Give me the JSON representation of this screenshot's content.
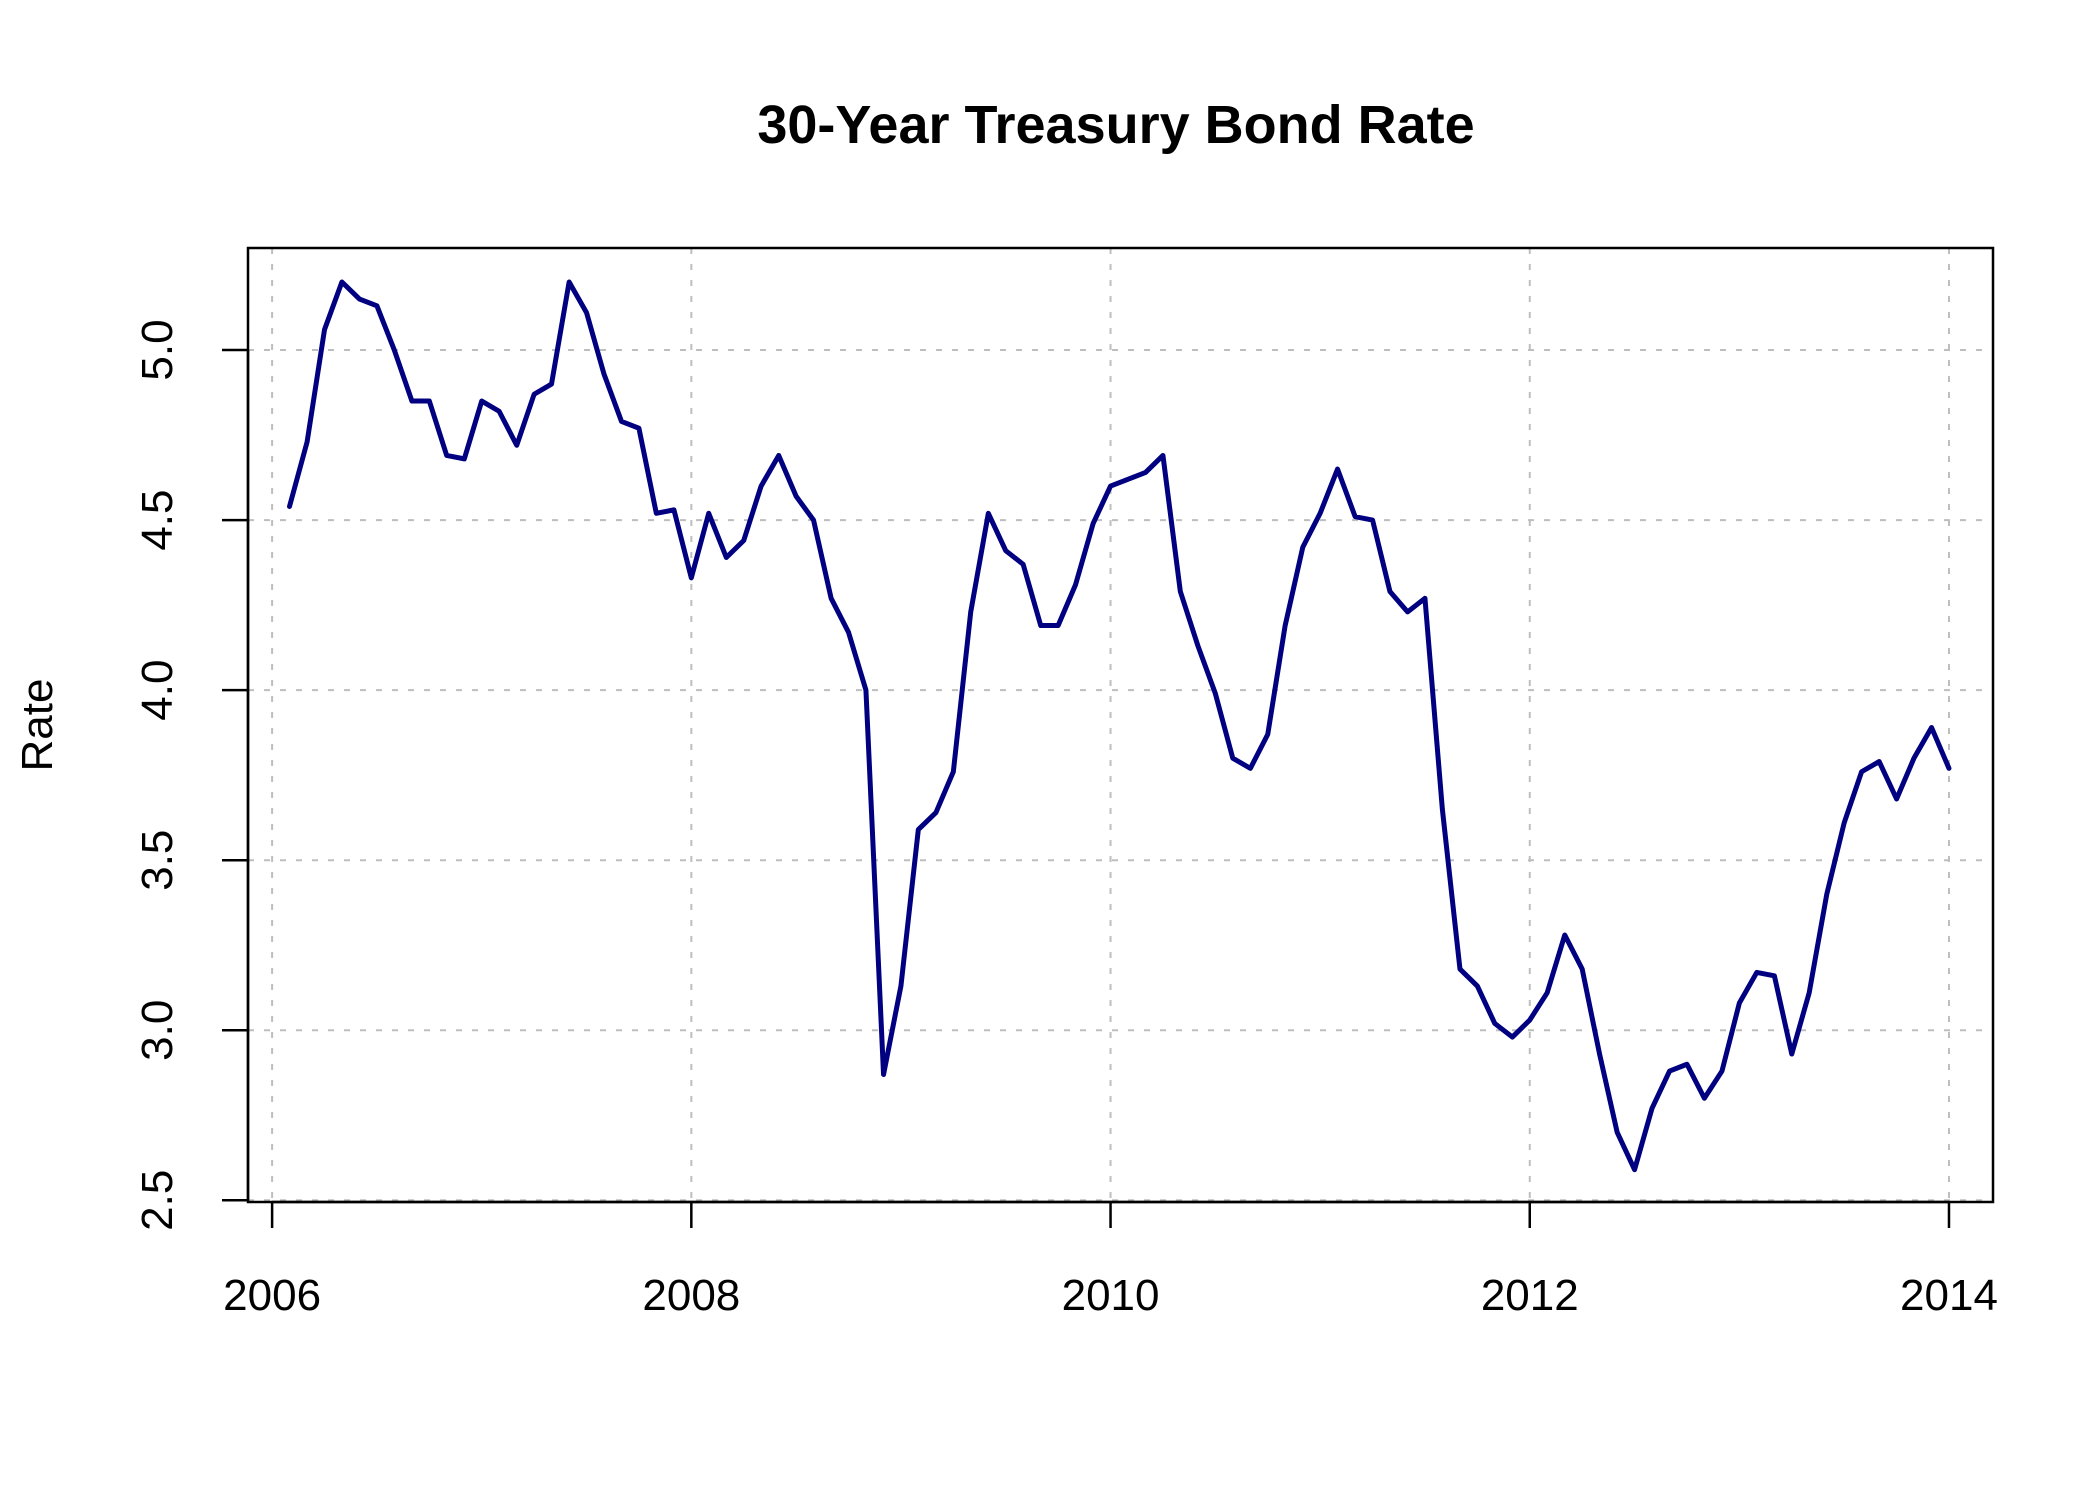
{
  "chart_data": {
    "type": "line",
    "title": "30-Year Treasury Bond Rate",
    "xlabel": "",
    "ylabel": "Rate",
    "xlim": [
      2005.885,
      2014.21
    ],
    "ylim": [
      2.495,
      5.3
    ],
    "x_ticks": [
      2006,
      2008,
      2010,
      2012,
      2014
    ],
    "y_ticks": [
      2.5,
      3.0,
      3.5,
      4.0,
      4.5,
      5.0
    ],
    "y_tick_labels": [
      "2.5",
      "3.0",
      "3.5",
      "4.0",
      "4.5",
      "5.0"
    ],
    "x_tick_labels": [
      "2006",
      "2008",
      "2010",
      "2012",
      "2014"
    ],
    "grid": true,
    "colors": {
      "line": "#000080"
    },
    "series": [
      {
        "x": [
          2006.083,
          2006.167,
          2006.25,
          2006.333,
          2006.417,
          2006.5,
          2006.583,
          2006.667,
          2006.75,
          2006.833,
          2006.917,
          2007.0,
          2007.083,
          2007.167,
          2007.25,
          2007.333,
          2007.417,
          2007.5,
          2007.583,
          2007.667,
          2007.75,
          2007.833,
          2007.917,
          2008.0,
          2008.083,
          2008.167,
          2008.25,
          2008.333,
          2008.417,
          2008.5,
          2008.583,
          2008.667,
          2008.75,
          2008.833,
          2008.917,
          2009.0,
          2009.083,
          2009.167,
          2009.25,
          2009.333,
          2009.417,
          2009.5,
          2009.583,
          2009.667,
          2009.75,
          2009.833,
          2009.917,
          2010.0,
          2010.083,
          2010.167,
          2010.25,
          2010.333,
          2010.417,
          2010.5,
          2010.583,
          2010.667,
          2010.75,
          2010.833,
          2010.917,
          2011.0,
          2011.083,
          2011.167,
          2011.25,
          2011.333,
          2011.417,
          2011.5,
          2011.583,
          2011.667,
          2011.75,
          2011.833,
          2011.917,
          2012.0,
          2012.083,
          2012.167,
          2012.25,
          2012.333,
          2012.417,
          2012.5,
          2012.583,
          2012.667,
          2012.75,
          2012.833,
          2012.917,
          2013.0,
          2013.083,
          2013.167,
          2013.25,
          2013.333,
          2013.417,
          2013.5,
          2013.583,
          2013.667,
          2013.75,
          2013.833,
          2013.917,
          2014.0
        ],
        "values": [
          4.54,
          4.73,
          5.06,
          5.2,
          5.15,
          5.13,
          5.0,
          4.85,
          4.85,
          4.69,
          4.68,
          4.85,
          4.82,
          4.72,
          4.87,
          4.9,
          5.2,
          5.11,
          4.93,
          4.79,
          4.77,
          4.52,
          4.53,
          4.33,
          4.52,
          4.39,
          4.44,
          4.6,
          4.69,
          4.57,
          4.5,
          4.27,
          4.17,
          4.0,
          2.87,
          3.13,
          3.59,
          3.64,
          3.76,
          4.23,
          4.52,
          4.41,
          4.37,
          4.19,
          4.19,
          4.31,
          4.49,
          4.6,
          4.62,
          4.64,
          4.69,
          4.29,
          4.13,
          3.99,
          3.8,
          3.77,
          3.87,
          4.19,
          4.42,
          4.52,
          4.65,
          4.51,
          4.5,
          4.29,
          4.23,
          4.27,
          3.65,
          3.18,
          3.13,
          3.02,
          2.98,
          3.03,
          3.11,
          3.28,
          3.18,
          2.93,
          2.7,
          2.59,
          2.77,
          2.88,
          2.9,
          2.8,
          2.88,
          3.08,
          3.17,
          3.16,
          2.93,
          3.11,
          3.4,
          3.61,
          3.76,
          3.79,
          3.68,
          3.8,
          3.89,
          3.77
        ]
      }
    ]
  }
}
